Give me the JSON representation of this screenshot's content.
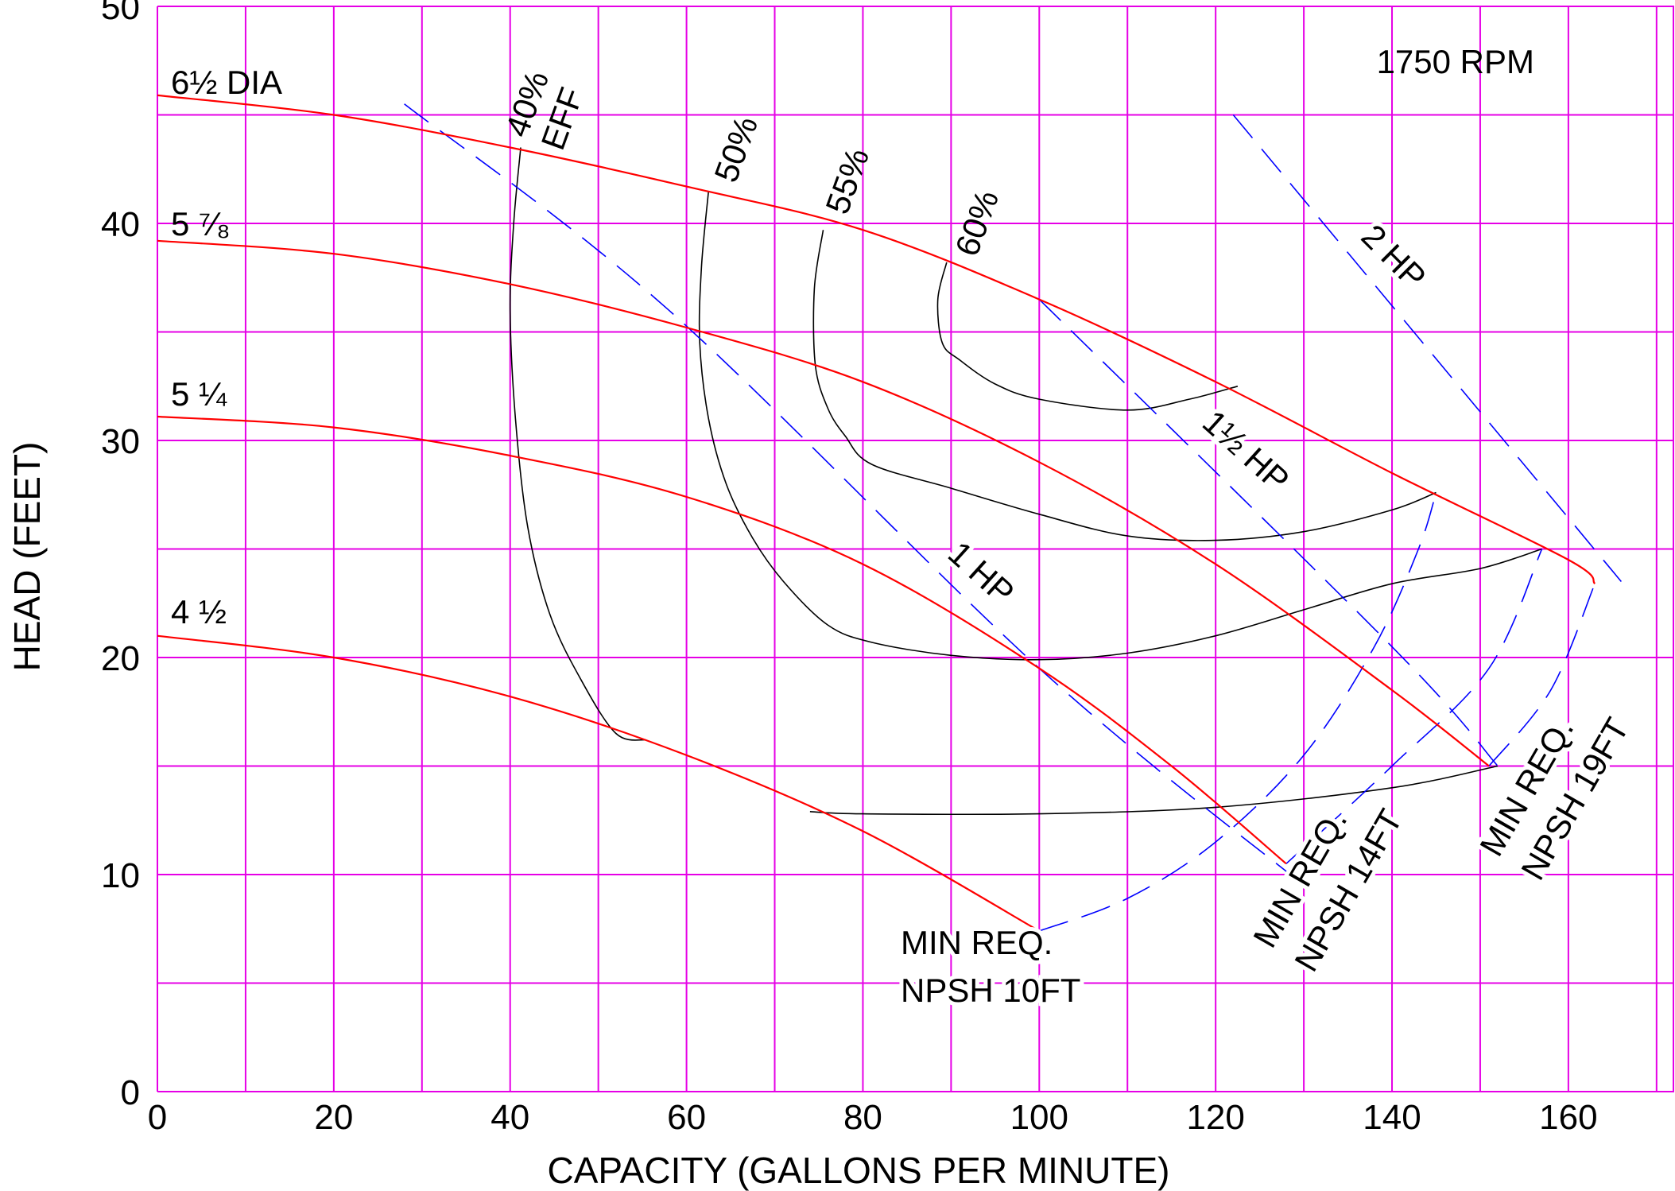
{
  "chart_data": {
    "type": "line",
    "title": "1750 RPM",
    "xlabel": "CAPACITY (GALLONS PER MINUTE)",
    "ylabel": "HEAD (FEET)",
    "xlim": [
      0,
      172
    ],
    "ylim": [
      0,
      50
    ],
    "x_ticks": [
      0,
      20,
      40,
      60,
      80,
      100,
      120,
      140,
      160
    ],
    "y_ticks": [
      0,
      10,
      20,
      30,
      40,
      50
    ],
    "x_tick_labels": [
      "0",
      "20",
      "40",
      "60",
      "80",
      "100",
      "120",
      "140",
      "160"
    ],
    "y_tick_labels": [
      "0",
      "10",
      "20",
      "30",
      "40",
      "50"
    ],
    "grid": true,
    "grid_x_step": 10,
    "grid_y_step": 5,
    "colors": {
      "grid": "#e600e6",
      "impeller_curve": "#ff0000",
      "efficiency_curve": "#000000",
      "horsepower_line": "#0000ff",
      "npsh_line": "#0000ff"
    },
    "impeller_curves": [
      {
        "label": "6½ DIA",
        "points": [
          [
            0,
            45.9
          ],
          [
            20,
            45
          ],
          [
            40,
            43.5
          ],
          [
            60,
            41.7
          ],
          [
            80,
            39.7
          ],
          [
            100,
            36.5
          ],
          [
            120,
            32.7
          ],
          [
            140,
            28.5
          ],
          [
            160,
            24.5
          ],
          [
            163,
            23.4
          ]
        ]
      },
      {
        "label": "5 ⁷⁄₈",
        "points": [
          [
            0,
            39.2
          ],
          [
            20,
            38.6
          ],
          [
            40,
            37.2
          ],
          [
            60,
            35.2
          ],
          [
            80,
            32.7
          ],
          [
            100,
            29
          ],
          [
            120,
            24.3
          ],
          [
            140,
            18.5
          ],
          [
            151,
            15
          ]
        ]
      },
      {
        "label": "5 ¼",
        "points": [
          [
            0,
            31.1
          ],
          [
            20,
            30.6
          ],
          [
            40,
            29.3
          ],
          [
            60,
            27.4
          ],
          [
            80,
            24.3
          ],
          [
            100,
            19.5
          ],
          [
            115,
            15
          ],
          [
            128,
            10.5
          ]
        ]
      },
      {
        "label": "4 ½",
        "points": [
          [
            0,
            21
          ],
          [
            20,
            20
          ],
          [
            40,
            18.2
          ],
          [
            60,
            15.5
          ],
          [
            80,
            12
          ],
          [
            100,
            7.4
          ]
        ]
      }
    ],
    "efficiency_curves": [
      {
        "label": "40%\nEFF",
        "points": [
          [
            41.2,
            43.5
          ],
          [
            40.4,
            40
          ],
          [
            40,
            36
          ],
          [
            40.6,
            31
          ],
          [
            42,
            26
          ],
          [
            44.5,
            22
          ],
          [
            48,
            19
          ],
          [
            52,
            16.5
          ],
          [
            55.4,
            16.2
          ]
        ]
      },
      {
        "label": "50%",
        "points": [
          [
            62.5,
            41.5
          ],
          [
            61.7,
            38
          ],
          [
            61.5,
            34.5
          ],
          [
            62.5,
            31
          ],
          [
            64.5,
            28
          ],
          [
            67.5,
            25.5
          ],
          [
            71,
            23.5
          ],
          [
            76,
            21.5
          ],
          [
            81,
            20.7
          ],
          [
            90,
            20.1
          ],
          [
            100,
            19.9
          ],
          [
            110,
            20.2
          ],
          [
            120,
            21
          ],
          [
            130,
            22.2
          ],
          [
            140,
            23.4
          ],
          [
            150,
            24.1
          ],
          [
            157,
            25
          ]
        ]
      },
      {
        "label": "55%",
        "points": [
          [
            75.5,
            39.7
          ],
          [
            74.5,
            37
          ],
          [
            74.6,
            33.5
          ],
          [
            76,
            31.5
          ],
          [
            78,
            30.2
          ],
          [
            81,
            28.9
          ],
          [
            90,
            27.8
          ],
          [
            100,
            26.6
          ],
          [
            110,
            25.6
          ],
          [
            120,
            25.4
          ],
          [
            130,
            25.8
          ],
          [
            140,
            26.8
          ],
          [
            145,
            27.6
          ]
        ]
      },
      {
        "label": "60%",
        "points": [
          [
            89.5,
            38.2
          ],
          [
            88.5,
            36.5
          ],
          [
            89,
            34.5
          ],
          [
            91,
            33.7
          ],
          [
            95,
            32.6
          ],
          [
            100,
            31.9
          ],
          [
            110,
            31.4
          ],
          [
            117,
            31.9
          ],
          [
            122.5,
            32.5
          ]
        ]
      },
      {
        "label": "",
        "points": [
          [
            74,
            12.9
          ],
          [
            80,
            12.8
          ],
          [
            100,
            12.8
          ],
          [
            120,
            13.1
          ],
          [
            140,
            14
          ],
          [
            152,
            15
          ]
        ]
      }
    ],
    "horsepower_lines": [
      {
        "label": "1 HP",
        "points": [
          [
            28,
            45.5
          ],
          [
            58,
            36
          ],
          [
            100,
            19.5
          ],
          [
            130,
            9.5
          ]
        ]
      },
      {
        "label": "1½ HP",
        "points": [
          [
            100,
            36.5
          ],
          [
            140,
            20.5
          ],
          [
            152,
            15
          ]
        ]
      },
      {
        "label": "2 HP",
        "points": [
          [
            122,
            45
          ],
          [
            166,
            23.5
          ]
        ]
      }
    ],
    "npsh_lines": [
      {
        "label": "MIN REQ.\nNPSH 10FT",
        "points": [
          [
            100,
            7.4
          ],
          [
            110,
            8.9
          ],
          [
            120,
            11.5
          ],
          [
            130,
            15.5
          ],
          [
            138,
            20.5
          ],
          [
            143,
            25
          ],
          [
            145,
            27.6
          ]
        ]
      },
      {
        "label": "MIN REQ.\nNPSH 14FT",
        "points": [
          [
            128,
            10.5
          ],
          [
            140,
            15
          ],
          [
            151,
            19.5
          ],
          [
            157,
            25
          ]
        ]
      },
      {
        "label": "MIN REQ.\nNPSH 19FT",
        "points": [
          [
            151,
            15
          ],
          [
            158,
            18.5
          ],
          [
            163,
            23.4
          ]
        ]
      }
    ]
  }
}
